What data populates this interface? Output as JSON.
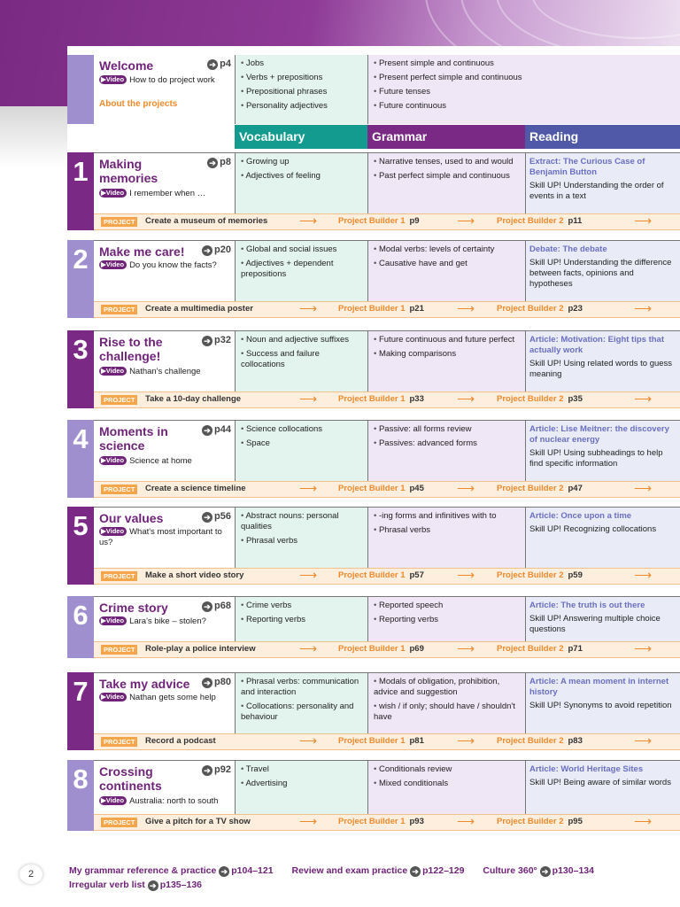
{
  "welcome": {
    "title": "Welcome",
    "page": "p4",
    "video": "How to do project work",
    "about": "About the projects",
    "vocab": [
      "Jobs",
      "Verbs + prepositions",
      "Prepositional phrases",
      "Personality adjectives"
    ],
    "grammar": [
      "Present simple and continuous",
      "Present perfect simple and continuous",
      "Future tenses",
      "Future continuous"
    ]
  },
  "headers": {
    "vocabulary": "Vocabulary",
    "grammar": "Grammar",
    "reading": "Reading"
  },
  "colors": {
    "purple": "#7a2a84",
    "lilac": "#9f8fcf",
    "teal": "#129b8e",
    "reading_blue": "#5058a8",
    "orange": "#ef8a2c"
  },
  "project_label": "PROJECT",
  "project_builder_1": "Project Builder 1",
  "project_builder_2": "Project Builder 2",
  "units": [
    {
      "num": "1",
      "title": "Making memories",
      "page": "p8",
      "video": "I remember when …",
      "vocab": [
        "Growing up",
        "Adjectives of feeling"
      ],
      "grammar": [
        "Narrative tenses, used to and would",
        "Past perfect simple and continuous"
      ],
      "reading_head": "Extract: The Curious Case of Benjamin Button",
      "reading_text": "Skill UP! Understanding the order of events in a text",
      "project": "Create a museum of memories",
      "pb1": "p9",
      "pb2": "p11"
    },
    {
      "num": "2",
      "title": "Make me care!",
      "page": "p20",
      "video": "Do you know the facts?",
      "vocab": [
        "Global and social issues",
        "Adjectives + dependent prepositions"
      ],
      "grammar": [
        "Modal verbs: levels of certainty",
        "Causative have and get"
      ],
      "reading_head": "Debate: The debate",
      "reading_text": "Skill UP! Understanding the difference between facts, opinions and hypotheses",
      "project": "Create a multimedia poster",
      "pb1": "p21",
      "pb2": "p23"
    },
    {
      "num": "3",
      "title": "Rise to the challenge!",
      "page": "p32",
      "video": "Nathan's challenge",
      "vocab": [
        "Noun and adjective suffixes",
        "Success and failure collocations"
      ],
      "grammar": [
        "Future continuous and future perfect",
        "Making comparisons"
      ],
      "reading_head": "Article: Motivation: Eight tips that actually work",
      "reading_text": "Skill UP! Using related words to guess meaning",
      "project": "Take a 10-day challenge",
      "pb1": "p33",
      "pb2": "p35"
    },
    {
      "num": "4",
      "title": "Moments in science",
      "page": "p44",
      "video": "Science at home",
      "vocab": [
        "Science collocations",
        "Space"
      ],
      "grammar": [
        "Passive: all forms review",
        "Passives: advanced forms"
      ],
      "reading_head": "Article: Lise Meitner: the discovery of nuclear energy",
      "reading_text": "Skill UP! Using subheadings to help find specific information",
      "project": "Create a science timeline",
      "pb1": "p45",
      "pb2": "p47"
    },
    {
      "num": "5",
      "title": "Our values",
      "page": "p56",
      "video": "What's most important to us?",
      "vocab": [
        "Abstract nouns: personal qualities",
        "Phrasal verbs"
      ],
      "grammar": [
        "-ing forms and infinitives with to",
        "Phrasal verbs"
      ],
      "reading_head": "Article: Once upon a time",
      "reading_text": "Skill UP! Recognizing collocations",
      "project": "Make a short video story",
      "pb1": "p57",
      "pb2": "p59"
    },
    {
      "num": "6",
      "title": "Crime story",
      "page": "p68",
      "video": "Lara's bike – stolen?",
      "vocab": [
        "Crime verbs",
        "Reporting verbs"
      ],
      "grammar": [
        "Reported speech",
        "Reporting verbs"
      ],
      "reading_head": "Article: The truth is out there",
      "reading_text": "Skill UP! Answering multiple choice questions",
      "project": "Role-play a police interview",
      "pb1": "p69",
      "pb2": "p71"
    },
    {
      "num": "7",
      "title": "Take my advice",
      "page": "p80",
      "video": "Nathan gets some help",
      "vocab": [
        "Phrasal verbs: communication and interaction",
        "Collocations: personality and behaviour"
      ],
      "grammar": [
        "Modals of obligation, prohibition, advice and suggestion",
        "wish / if only; should have / shouldn't have"
      ],
      "reading_head": "Article: A mean moment in internet history",
      "reading_text": "Skill UP! Synonyms to avoid repetition",
      "project": "Record a podcast",
      "pb1": "p81",
      "pb2": "p83"
    },
    {
      "num": "8",
      "title": "Crossing continents",
      "page": "p92",
      "video": "Australia: north to south",
      "vocab": [
        "Travel",
        "Advertising"
      ],
      "grammar": [
        "Conditionals review",
        "Mixed conditionals"
      ],
      "reading_head": "Article: World Heritage Sites",
      "reading_text": "Skill UP! Being aware of similar words",
      "project": "Give a pitch for a TV show",
      "pb1": "p93",
      "pb2": "p95"
    }
  ],
  "footer": {
    "grammar_ref": "My grammar reference & practice",
    "grammar_ref_pages": "p104–121",
    "review": "Review and exam practice",
    "review_pages": "p122–129",
    "culture": "Culture 360°",
    "culture_pages": "p130–134",
    "irregular": "Irregular verb list",
    "irregular_pages": "p135–136"
  },
  "page_number": "2"
}
